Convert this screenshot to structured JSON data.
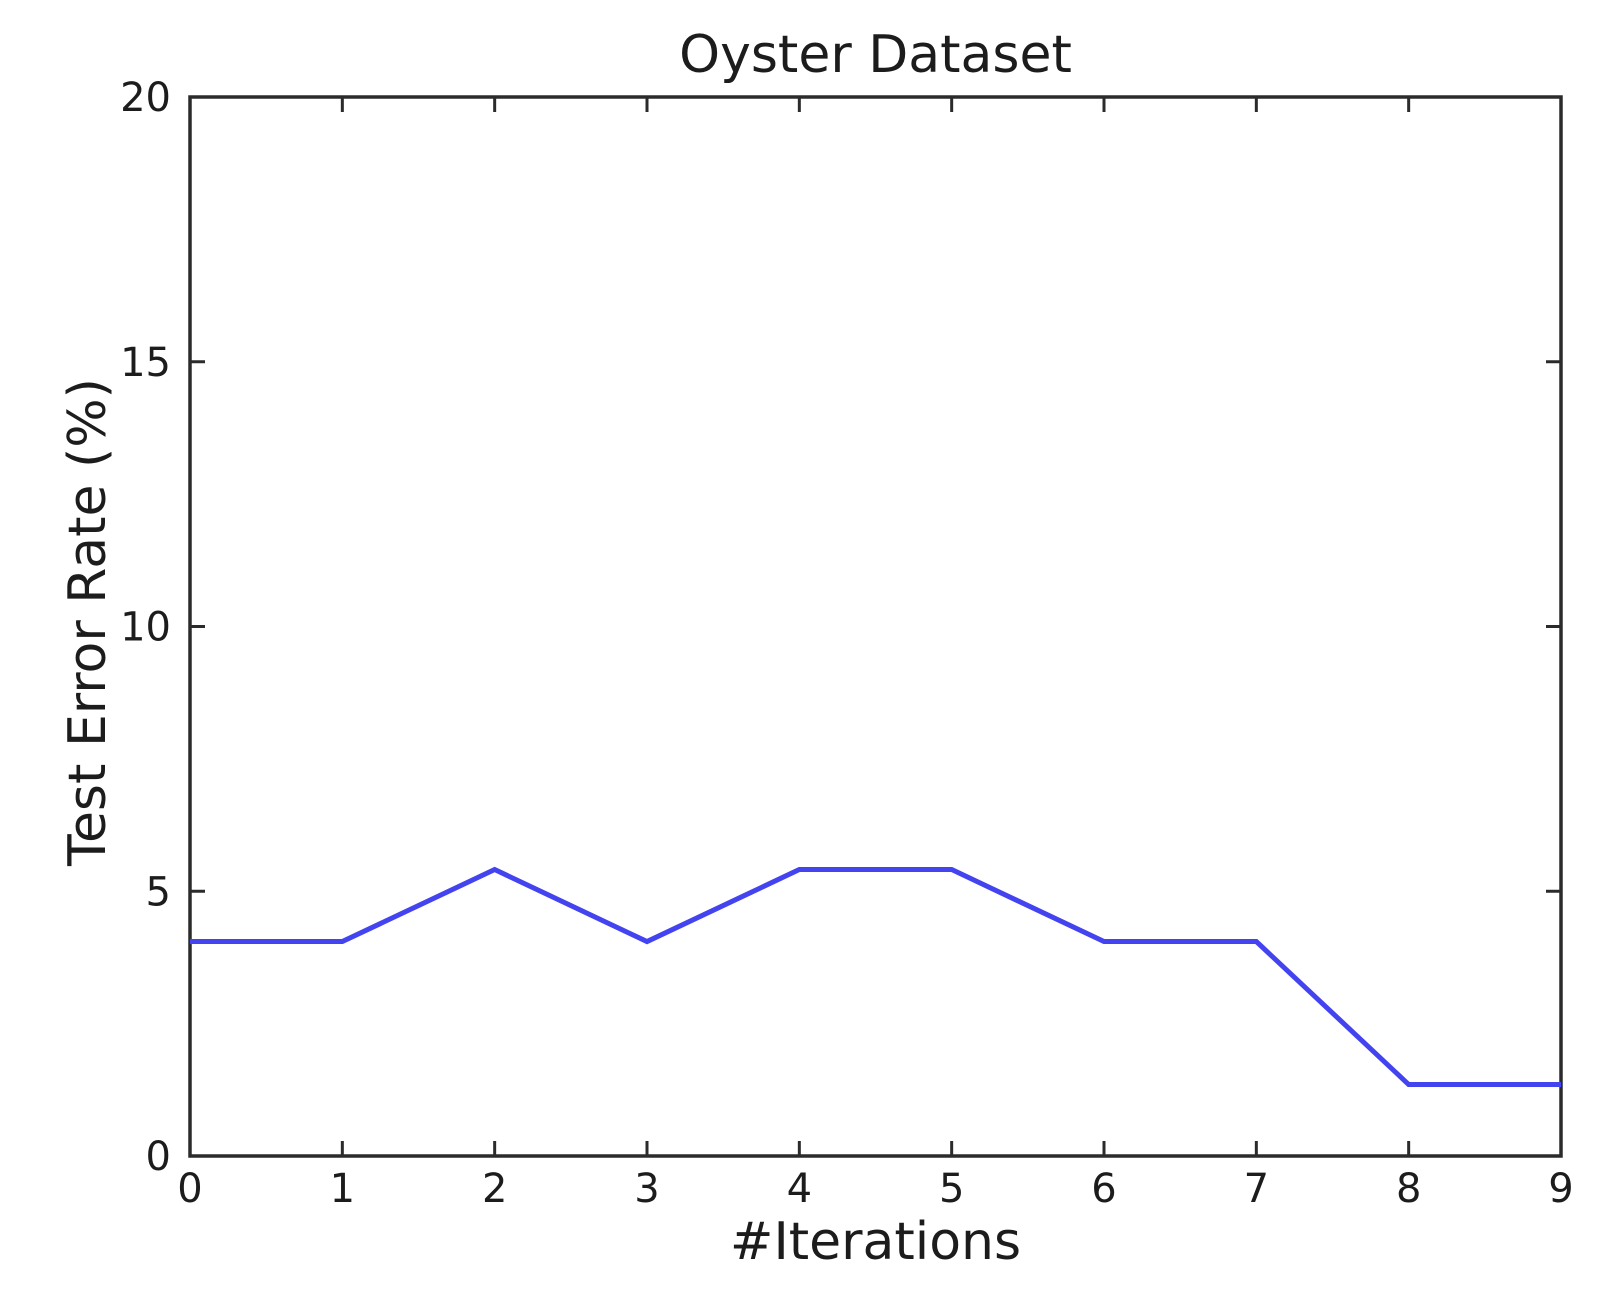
{
  "chart_data": {
    "type": "line",
    "title": "Oyster Dataset",
    "xlabel": "#Iterations",
    "ylabel": "Test Error Rate (%)",
    "x": [
      0,
      1,
      2,
      3,
      4,
      5,
      6,
      7,
      8,
      9
    ],
    "series": [
      {
        "name": "Test Error Rate",
        "values": [
          4.05,
          4.05,
          5.41,
          4.05,
          5.41,
          5.41,
          4.05,
          4.05,
          1.35,
          1.35
        ],
        "color": "#4343f0"
      }
    ],
    "xlim": [
      0,
      9
    ],
    "ylim": [
      0,
      20
    ],
    "xticks": [
      0,
      1,
      2,
      3,
      4,
      5,
      6,
      7,
      8,
      9
    ],
    "yticks": [
      0,
      5,
      10,
      15,
      20
    ],
    "grid": false,
    "legend": "none",
    "axis_color": "#2b2b2b",
    "text_color": "#1c1c1c",
    "background": "#ffffff"
  }
}
